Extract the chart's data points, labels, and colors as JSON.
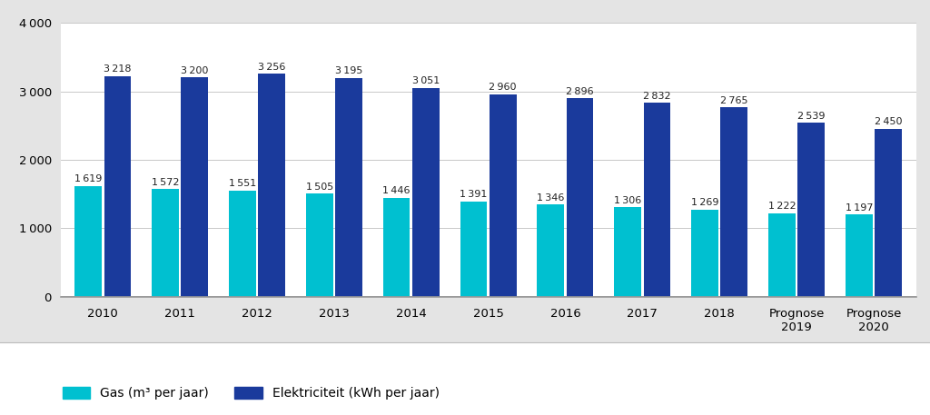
{
  "categories": [
    "2010",
    "2011",
    "2012",
    "2013",
    "2014",
    "2015",
    "2016",
    "2017",
    "2018",
    "Prognose\n2019",
    "Prognose\n2020"
  ],
  "gas_values": [
    1619,
    1572,
    1551,
    1505,
    1446,
    1391,
    1346,
    1306,
    1269,
    1222,
    1197
  ],
  "elec_values": [
    3218,
    3200,
    3256,
    3195,
    3051,
    2960,
    2896,
    2832,
    2765,
    2539,
    2450
  ],
  "gas_color": "#00C0D0",
  "elec_color": "#1A3A9C",
  "background_color": "#E4E4E4",
  "plot_bg_color": "#FFFFFF",
  "ylim": [
    0,
    4000
  ],
  "yticks": [
    0,
    1000,
    2000,
    3000,
    4000
  ],
  "bar_label_fontsize": 8.0,
  "tick_fontsize": 9.5,
  "legend_gas": "Gas (m³ per jaar)",
  "legend_elec": "Elektriciteit (kWh per jaar)",
  "grid_color": "#C8C8C8",
  "thousands_sep": " "
}
